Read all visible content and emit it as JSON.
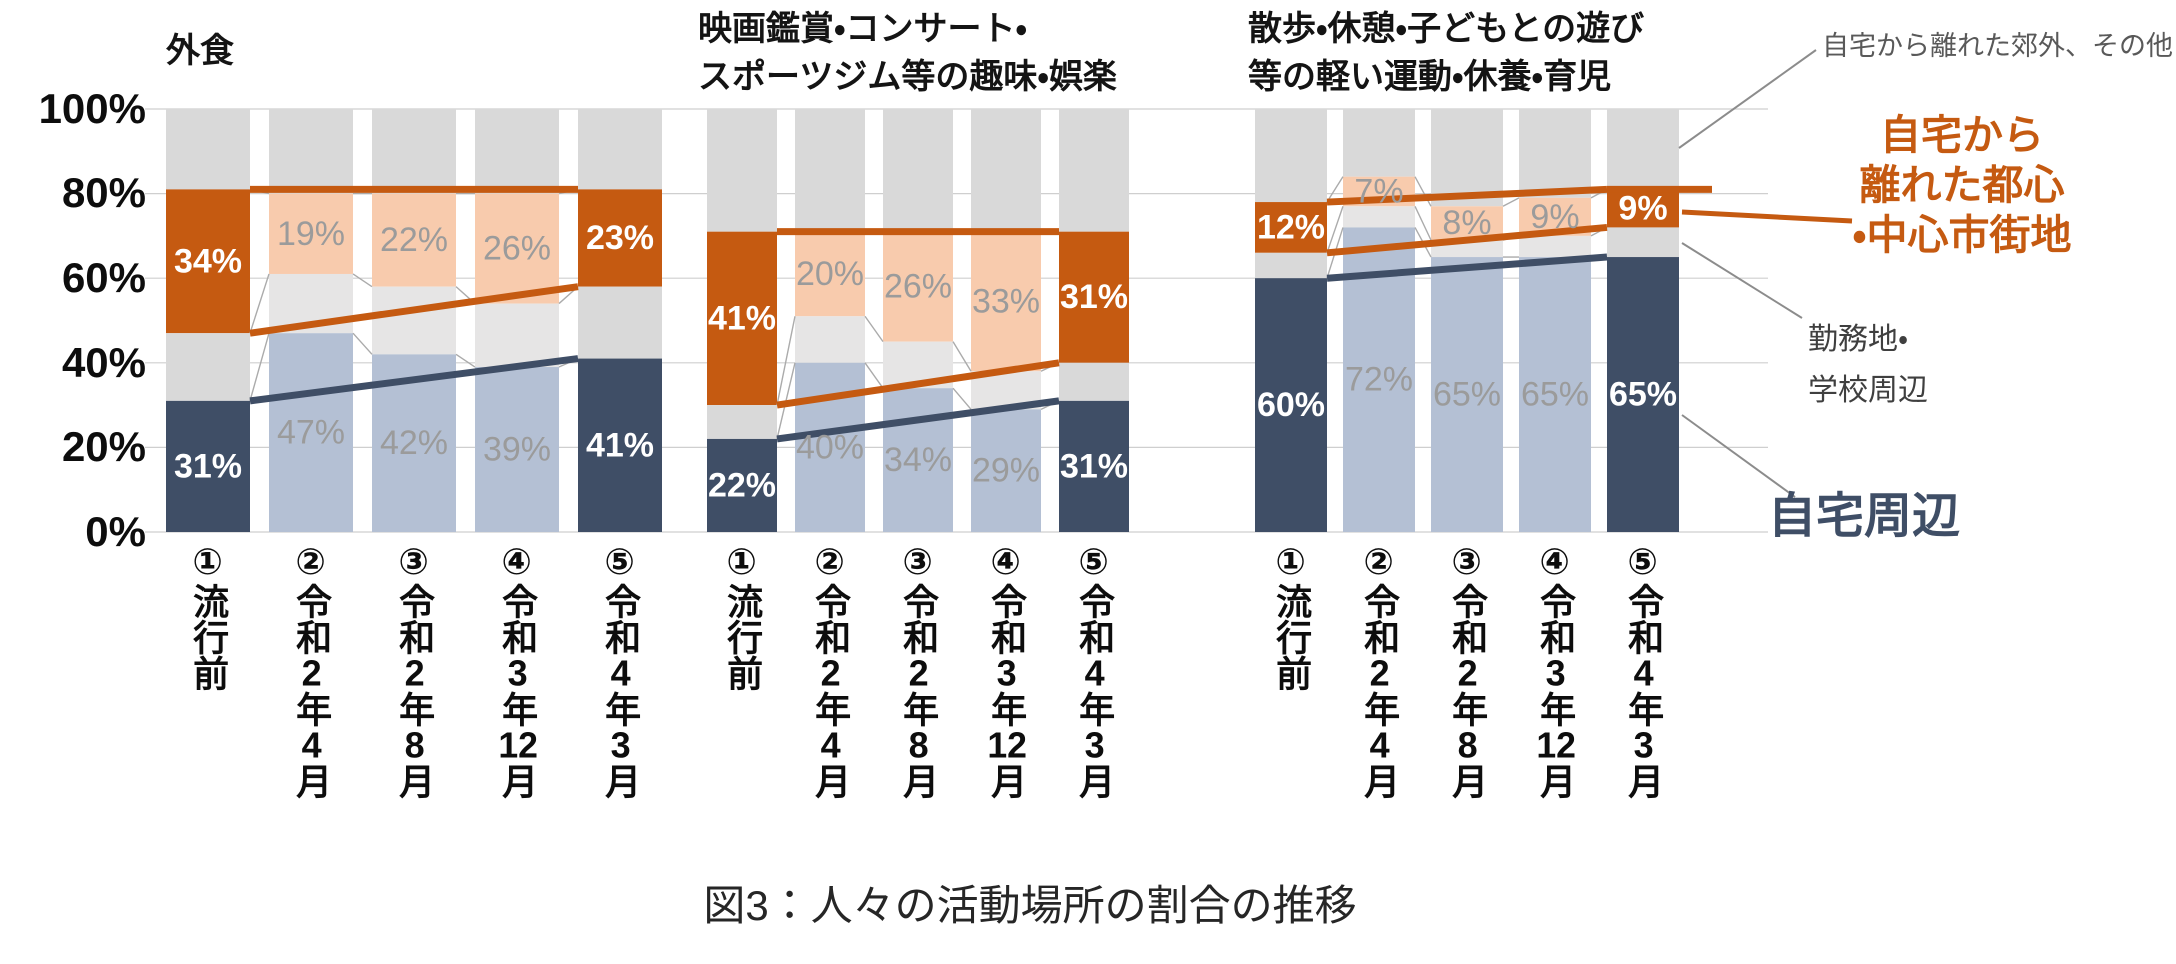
{
  "caption": "図3：人々の活動場所の割合の推移",
  "colors": {
    "home_emphasis": "#3F4E66",
    "home_faded": "#B4C0D4",
    "center_emphasis": "#C55A11",
    "center_faded": "#F8CBAD",
    "gray_segment": "#D9D9D9",
    "gray_segment_faded": "#E6E5E5",
    "faded_label_text": "#9B9B9B",
    "emphasis_label_text": "#FFFFFF",
    "gridline": "#CFCFCF",
    "connector": "#ABABAB",
    "pointer_gray": "#8C8C8C"
  },
  "legend": {
    "suburb_label": "自宅から離れた郊外、その他",
    "center_lines": [
      "自宅から",
      "離れた都心",
      "・中心市街地"
    ],
    "work_lines": [
      "勤務地・",
      "学校周辺"
    ],
    "home_label": "自宅周辺"
  },
  "chart_data": {
    "type": "bar",
    "stacked": true,
    "unit": "%",
    "ylim": [
      0,
      100
    ],
    "yticks": [
      "100%",
      "80%",
      "60%",
      "40%",
      "20%",
      "0%"
    ],
    "grid": true,
    "categories": [
      "①流行前",
      "②令和2年4月",
      "③令和2年8月",
      "④令和3年12月",
      "⑤令和4年3月"
    ],
    "emphasized_category_indexes": [
      0,
      4
    ],
    "series_legend_names": {
      "home": "自宅周辺",
      "work": "勤務地・学校周辺",
      "center": "自宅から離れた都心・中心市街地",
      "suburb": "自宅から離れた郊外、その他"
    },
    "notes": "home(自宅周辺) and center(自宅から離れた都心・中心市街地) segments carry data labels; work(勤務地・学校周辺) segment values are unlabeled in the figure and estimated from pixels; suburb(郊外・その他) is the remainder to 100%.",
    "panels": [
      {
        "title_lines": [
          "外食"
        ],
        "home": [
          31,
          47,
          42,
          39,
          41
        ],
        "work_est": [
          16,
          14,
          16,
          15,
          17
        ],
        "center": [
          34,
          19,
          22,
          26,
          23
        ]
      },
      {
        "title_lines": [
          "映画鑑賞・コンサート・",
          "スポーツジム等の趣味・娯楽"
        ],
        "home": [
          22,
          40,
          34,
          29,
          31
        ],
        "work_est": [
          8,
          11,
          11,
          9,
          9
        ],
        "center": [
          41,
          20,
          26,
          33,
          31
        ]
      },
      {
        "title_lines": [
          "散歩・休憩・子どもとの遊び",
          "等の軽い運動・休養・育児"
        ],
        "home": [
          60,
          72,
          65,
          65,
          65
        ],
        "work_est": [
          6,
          5,
          4,
          5,
          7
        ],
        "center": [
          12,
          7,
          8,
          9,
          9
        ]
      }
    ]
  }
}
